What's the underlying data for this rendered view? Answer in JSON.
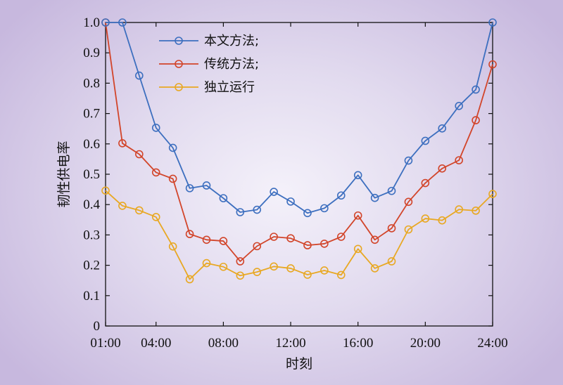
{
  "chart_data": {
    "type": "line",
    "xlabel": "时刻",
    "ylabel": "韧性供电率",
    "xlim": [
      1,
      24
    ],
    "ylim": [
      0,
      1
    ],
    "x": [
      1,
      2,
      3,
      4,
      5,
      6,
      7,
      8,
      9,
      10,
      11,
      12,
      13,
      14,
      15,
      16,
      17,
      18,
      19,
      20,
      21,
      22,
      23,
      24
    ],
    "x_ticks": [
      1,
      4,
      8,
      12,
      16,
      20,
      24
    ],
    "x_tick_labels": [
      "01:00",
      "04:00",
      "08:00",
      "12:00",
      "16:00",
      "20:00",
      "24:00"
    ],
    "y_ticks": [
      0,
      0.1,
      0.2,
      0.3,
      0.4,
      0.5,
      0.6,
      0.7,
      0.8,
      0.9,
      1.0
    ],
    "y_tick_labels": [
      "0",
      "0.1",
      "0.2",
      "0.3",
      "0.4",
      "0.5",
      "0.6",
      "0.7",
      "0.8",
      "0.9",
      "1.0"
    ],
    "legend_position": "top-left",
    "grid": false,
    "marker": "open-circle",
    "series": [
      {
        "name": "本文方法;",
        "color": "#3d6fbf",
        "values": [
          1.0,
          1.0,
          0.825,
          0.653,
          0.587,
          0.454,
          0.463,
          0.421,
          0.375,
          0.383,
          0.442,
          0.41,
          0.372,
          0.388,
          0.43,
          0.497,
          0.422,
          0.445,
          0.545,
          0.61,
          0.651,
          0.725,
          0.779,
          1.0
        ]
      },
      {
        "name": "传统方法;",
        "color": "#d2452a",
        "values": [
          1.0,
          0.602,
          0.566,
          0.506,
          0.485,
          0.303,
          0.284,
          0.28,
          0.213,
          0.263,
          0.294,
          0.289,
          0.266,
          0.271,
          0.294,
          0.364,
          0.284,
          0.322,
          0.409,
          0.471,
          0.519,
          0.546,
          0.678,
          0.862
        ]
      },
      {
        "name": "独立运行",
        "color": "#e8a823",
        "values": [
          0.446,
          0.396,
          0.381,
          0.359,
          0.262,
          0.154,
          0.207,
          0.195,
          0.166,
          0.178,
          0.196,
          0.19,
          0.169,
          0.183,
          0.168,
          0.254,
          0.19,
          0.213,
          0.318,
          0.354,
          0.348,
          0.384,
          0.38,
          0.435
        ]
      }
    ]
  }
}
